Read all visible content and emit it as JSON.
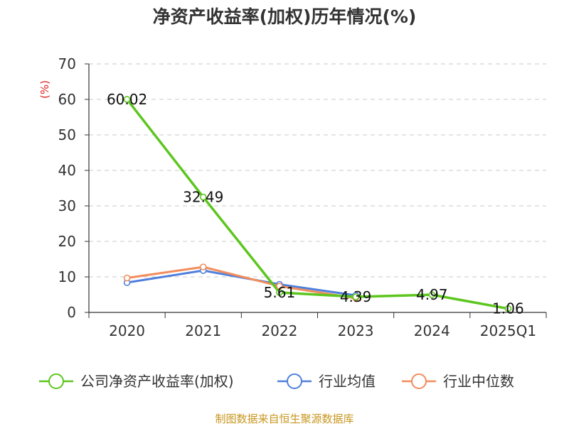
{
  "title": "净资产收益率(加权)历年情况(%)",
  "source": "制图数据来自恒生聚源数据库",
  "chart_data": {
    "type": "line",
    "title": "净资产收益率(加权)历年情况(%)",
    "ylabel": "(%)",
    "categories": [
      "2020",
      "2021",
      "2022",
      "2023",
      "2024",
      "2025Q1"
    ],
    "ylim": [
      0,
      70
    ],
    "yticks": [
      0,
      10,
      20,
      30,
      40,
      50,
      60,
      70
    ],
    "grid": true,
    "legend_position": "bottom",
    "series": [
      {
        "name": "公司净资产收益率(加权)",
        "color": "#5cc61e",
        "values": [
          60.02,
          32.49,
          5.61,
          4.39,
          4.97,
          1.06
        ],
        "labels": [
          "60.02",
          "32.49",
          "5.61",
          "4.39",
          "4.97",
          "1.06"
        ]
      },
      {
        "name": "行业均值",
        "color": "#4f7fdc",
        "values": [
          8.4,
          11.8,
          7.9,
          4.8,
          null,
          null
        ]
      },
      {
        "name": "行业中位数",
        "color": "#f28c5b",
        "values": [
          9.7,
          12.8,
          7.4,
          4.0,
          null,
          null
        ]
      }
    ]
  }
}
